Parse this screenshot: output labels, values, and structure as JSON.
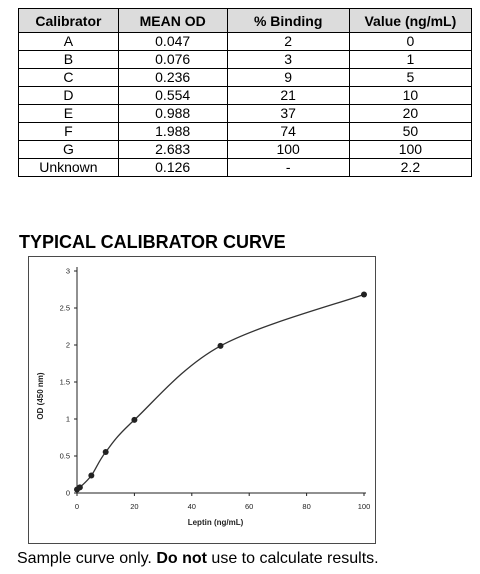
{
  "table": {
    "headers": [
      "Calibrator",
      "MEAN OD",
      "% Binding",
      "Value (ng/mL)"
    ],
    "rows": [
      [
        "A",
        "0.047",
        "2",
        "0"
      ],
      [
        "B",
        "0.076",
        "3",
        "1"
      ],
      [
        "C",
        "0.236",
        "9",
        "5"
      ],
      [
        "D",
        "0.554",
        "21",
        "10"
      ],
      [
        "E",
        "0.988",
        "37",
        "20"
      ],
      [
        "F",
        "1.988",
        "74",
        "50"
      ],
      [
        "G",
        "2.683",
        "100",
        "100"
      ],
      [
        "Unknown",
        "0.126",
        "-",
        "2.2"
      ]
    ]
  },
  "curve_title": "TYPICAL CALIBRATOR CURVE",
  "chart_data": {
    "type": "line",
    "title": "",
    "xlabel": "Leptin (ng/mL)",
    "ylabel": "OD (450 nm)",
    "xlim": [
      0,
      100
    ],
    "ylim": [
      0,
      3
    ],
    "x_ticks": [
      "0",
      "20",
      "40",
      "60",
      "80",
      "100"
    ],
    "y_ticks": [
      "0",
      "0.5",
      "1",
      "1.5",
      "2",
      "2.5",
      "3"
    ],
    "grid": false,
    "series": [
      {
        "x": [
          0,
          1,
          5,
          10,
          20,
          50,
          100
        ],
        "y": [
          0.047,
          0.076,
          0.236,
          0.554,
          0.988,
          1.988,
          2.683
        ]
      }
    ]
  },
  "caption": {
    "prefix": "Sample curve only.  ",
    "bold": "Do not",
    "suffix": " use to calculate results."
  }
}
